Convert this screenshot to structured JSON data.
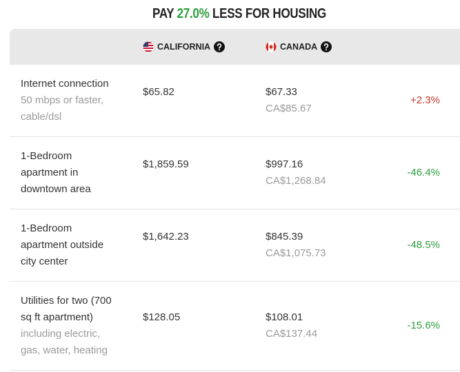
{
  "header": {
    "title": {
      "prefix": "PAY",
      "highlight": "27.0%",
      "suffix": "LESS FOR HOUSING"
    }
  },
  "table": {
    "columns": [
      "CALIFORNIA",
      "CANADA"
    ],
    "rows": [
      {
        "item": "Internet connection",
        "detail": "50 mbps or faster, cable/dsl",
        "california": "$65.82",
        "canada": "$67.33",
        "canada_local": "CA$85.67",
        "difference": "+2.3%"
      },
      {
        "item": "1-Bedroom apartment in downtown area",
        "california": "$1,859.59",
        "canada": "$997.16",
        "canada_local": "CA$1,268.84",
        "difference": "-46.4%"
      },
      {
        "item": "1-Bedroom apartment outside city center",
        "california": "$1,642.23",
        "canada": "$845.39",
        "canada_local": "CA$1,075.73",
        "difference": "-48.5%"
      },
      {
        "item": "Utilities for two (700 sq ft apartment)",
        "detail": "including electric, gas, water, heating",
        "california": "$128.05",
        "canada": "$108.01",
        "canada_local": "CA$137.44",
        "difference": "-15.6%"
      }
    ]
  }
}
